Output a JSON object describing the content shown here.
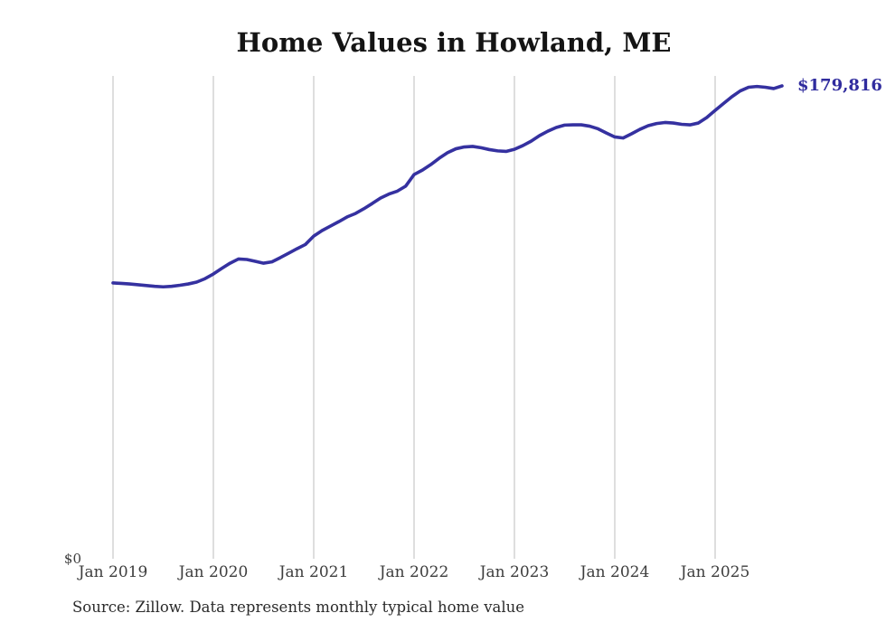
{
  "title": "Home Values in Howland, ME",
  "source_note": "Source: Zillow. Data represents monthly typical home value",
  "chart_data": {
    "type": "line",
    "title": "Home Values in Howland, ME",
    "series_name": "Monthly typical home value",
    "unit": "USD",
    "x": [
      "2019-01",
      "2019-02",
      "2019-03",
      "2019-04",
      "2019-05",
      "2019-06",
      "2019-07",
      "2019-08",
      "2019-09",
      "2019-10",
      "2019-11",
      "2019-12",
      "2020-01",
      "2020-02",
      "2020-03",
      "2020-04",
      "2020-05",
      "2020-06",
      "2020-07",
      "2020-08",
      "2020-09",
      "2020-10",
      "2020-11",
      "2020-12",
      "2021-01",
      "2021-02",
      "2021-03",
      "2021-04",
      "2021-05",
      "2021-06",
      "2021-07",
      "2021-08",
      "2021-09",
      "2021-10",
      "2021-11",
      "2021-12",
      "2022-01",
      "2022-02",
      "2022-03",
      "2022-04",
      "2022-05",
      "2022-06",
      "2022-07",
      "2022-08",
      "2022-09",
      "2022-10",
      "2022-11",
      "2022-12",
      "2023-01",
      "2023-02",
      "2023-03",
      "2023-04",
      "2023-05",
      "2023-06",
      "2023-07",
      "2023-08",
      "2023-09",
      "2023-10",
      "2023-11",
      "2023-12",
      "2024-01",
      "2024-02",
      "2024-03",
      "2024-04",
      "2024-05",
      "2024-06",
      "2024-07",
      "2024-08",
      "2024-09",
      "2024-10",
      "2024-11",
      "2024-12",
      "2025-01",
      "2025-02",
      "2025-03",
      "2025-04",
      "2025-05",
      "2025-06",
      "2025-07",
      "2025-08",
      "2025-09"
    ],
    "values": [
      104900,
      104700,
      104500,
      104200,
      103900,
      103600,
      103400,
      103600,
      104000,
      104500,
      105200,
      106500,
      108300,
      110400,
      112400,
      114000,
      113800,
      113100,
      112400,
      112900,
      114500,
      116200,
      117900,
      119500,
      122700,
      124800,
      126500,
      128200,
      130000,
      131300,
      133100,
      135100,
      137200,
      138700,
      139800,
      141700,
      146100,
      147800,
      149900,
      152300,
      154400,
      155900,
      156600,
      156800,
      156300,
      155600,
      155100,
      154900,
      155700,
      157100,
      158800,
      160900,
      162600,
      164000,
      164900,
      165000,
      165000,
      164500,
      163500,
      161900,
      160400,
      160000,
      161600,
      163300,
      164700,
      165500,
      165900,
      165700,
      165200,
      165000,
      165700,
      167800,
      170500,
      173100,
      175700,
      177900,
      179300,
      179600,
      179300,
      178800,
      179816
    ],
    "x_tick_labels": [
      "Jan 2019",
      "Jan 2020",
      "Jan 2021",
      "Jan 2022",
      "Jan 2023",
      "Jan 2024",
      "Jan 2025"
    ],
    "y_tick_labels": [
      "$0"
    ],
    "ylim": [
      0,
      179816
    ],
    "latest_value": 179816,
    "end_label": "$179,816",
    "grid": "vertical-at-january",
    "legend": "none",
    "colors": {
      "line": "#3531a0",
      "end_label": "#302c9e",
      "grid": "#cccccc",
      "title": "#141414",
      "axis_text": "#3d3d3d",
      "background": "#ffffff"
    }
  }
}
